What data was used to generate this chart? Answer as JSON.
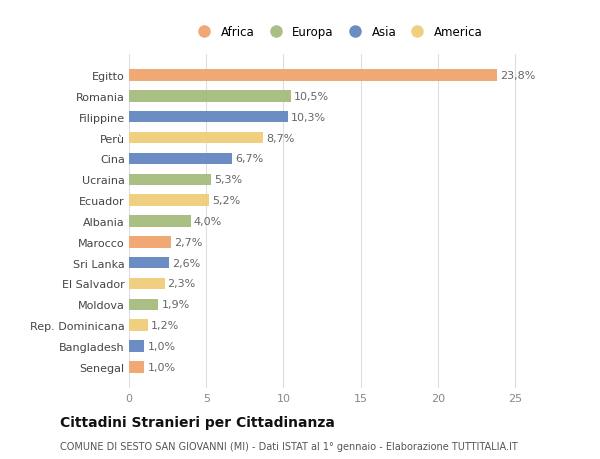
{
  "categories": [
    "Senegal",
    "Bangladesh",
    "Rep. Dominicana",
    "Moldova",
    "El Salvador",
    "Sri Lanka",
    "Marocco",
    "Albania",
    "Ecuador",
    "Ucraina",
    "Cina",
    "Perù",
    "Filippine",
    "Romania",
    "Egitto"
  ],
  "values": [
    1.0,
    1.0,
    1.2,
    1.9,
    2.3,
    2.6,
    2.7,
    4.0,
    5.2,
    5.3,
    6.7,
    8.7,
    10.3,
    10.5,
    23.8
  ],
  "labels": [
    "1,0%",
    "1,0%",
    "1,2%",
    "1,9%",
    "2,3%",
    "2,6%",
    "2,7%",
    "4,0%",
    "5,2%",
    "5,3%",
    "6,7%",
    "8,7%",
    "10,3%",
    "10,5%",
    "23,8%"
  ],
  "continents": [
    "Africa",
    "Asia",
    "America",
    "Europa",
    "America",
    "Asia",
    "Africa",
    "Europa",
    "America",
    "Europa",
    "Asia",
    "America",
    "Asia",
    "Europa",
    "Africa"
  ],
  "continent_colors": {
    "Africa": "#F0A875",
    "Europa": "#AABF84",
    "Asia": "#6B8DC4",
    "America": "#F0D080"
  },
  "legend_order": [
    "Africa",
    "Europa",
    "Asia",
    "America"
  ],
  "title": "Cittadini Stranieri per Cittadinanza",
  "subtitle": "COMUNE DI SESTO SAN GIOVANNI (MI) - Dati ISTAT al 1° gennaio - Elaborazione TUTTITALIA.IT",
  "xlim": [
    0,
    27
  ],
  "xticks": [
    0,
    5,
    10,
    15,
    20,
    25
  ],
  "background_color": "#ffffff",
  "grid_color": "#dddddd",
  "bar_height": 0.55,
  "label_fontsize": 8,
  "tick_fontsize": 8,
  "title_fontsize": 10,
  "subtitle_fontsize": 7
}
